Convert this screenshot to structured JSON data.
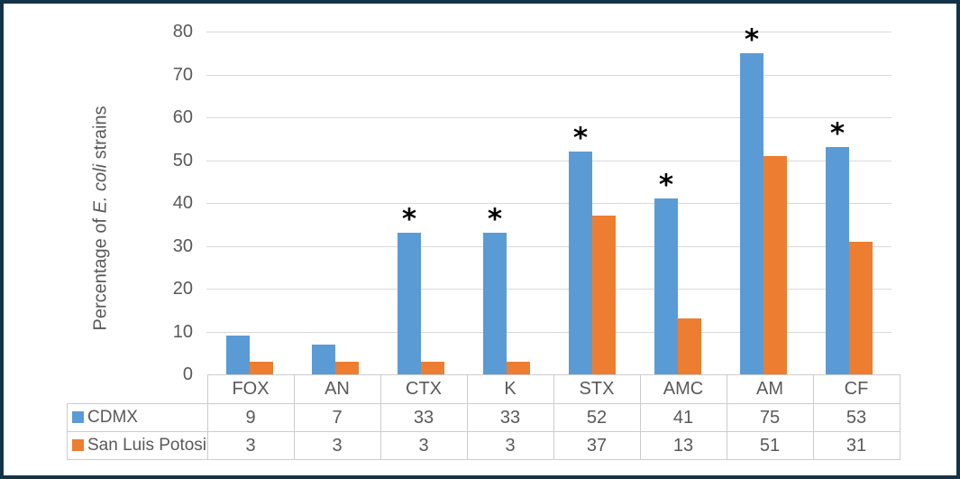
{
  "figure": {
    "border_color": "#133349",
    "background_color": "#ffffff"
  },
  "chart_data": {
    "type": "bar",
    "title": "",
    "xlabel": "",
    "ylabel": {
      "full": "Percentage of E. coli strains",
      "prefix": "Percentage of ",
      "italic": "E. coli",
      "suffix": " strains"
    },
    "categories": [
      "FOX",
      "AN",
      "CTX",
      "K",
      "STX",
      "AMC",
      "AM",
      "CF"
    ],
    "series": [
      {
        "name": "CDMX",
        "color": "#5b9bd5",
        "values": [
          9,
          7,
          33,
          33,
          52,
          41,
          75,
          53
        ]
      },
      {
        "name": "San Luis Potosi",
        "color": "#ed7d31",
        "values": [
          3,
          3,
          3,
          3,
          37,
          13,
          51,
          31
        ]
      }
    ],
    "significance": {
      "marker": "*",
      "applies_to_series": "CDMX",
      "per_category": [
        false,
        false,
        true,
        true,
        true,
        true,
        true,
        true
      ]
    },
    "ylim": [
      0,
      80
    ],
    "yticks": [
      0,
      10,
      20,
      30,
      40,
      50,
      60,
      70,
      80
    ],
    "grid": true,
    "gridline_color": "#d9d9d9",
    "axis_text_color": "#595959",
    "table_border_color": "#cccccc",
    "legend_position": "table-left",
    "data_table_shown": true
  }
}
